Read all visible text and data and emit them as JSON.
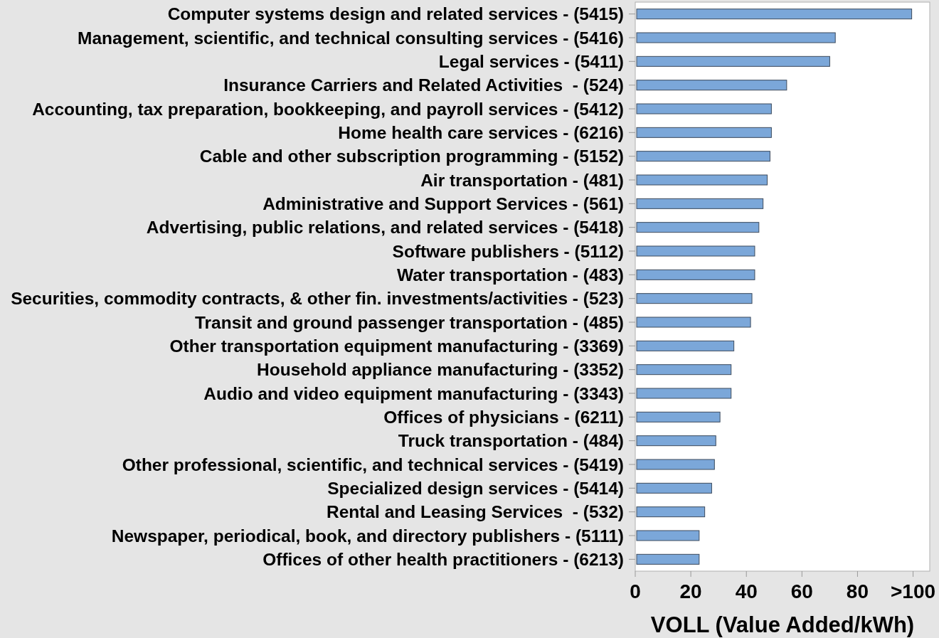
{
  "chart_data": {
    "type": "bar",
    "orientation": "horizontal",
    "xlabel": "VOLL (Value Added/kWh)",
    "categories": [
      "Computer systems design and related services - (5415)",
      "Management, scientific, and technical consulting services - (5416)",
      "Legal services - (5411)",
      "Insurance Carriers and Related Activities  - (524)",
      "Accounting, tax preparation, bookkeeping, and payroll services - (5412)",
      "Home health care services - (6216)",
      "Cable and other subscription programming - (5152)",
      "Air transportation - (481)",
      "Administrative and Support Services - (561)",
      "Advertising, public relations, and related services - (5418)",
      "Software publishers - (5112)",
      "Water transportation - (483)",
      "Securities, commodity contracts, & other fin. investments/activities - (523)",
      "Transit and ground passenger transportation - (485)",
      "Other transportation equipment manufacturing - (3369)",
      "Household appliance manufacturing - (3352)",
      "Audio and video equipment manufacturing - (3343)",
      "Offices of physicians - (6211)",
      "Truck transportation - (484)",
      "Other professional, scientific, and technical services - (5419)",
      "Specialized design services - (5414)",
      "Rental and Leasing Services  - (532)",
      "Newspaper, periodical, book, and directory publishers - (5111)",
      "Offices of other health practitioners - (6213)"
    ],
    "values": [
      99.5,
      72,
      70,
      54.5,
      49,
      49,
      48.5,
      47.5,
      46,
      44.5,
      43,
      43,
      42,
      41.5,
      35.5,
      34.5,
      34.5,
      30.5,
      29,
      28.5,
      27.5,
      25,
      23,
      23
    ],
    "color": "#7ba7d9",
    "xlim": [
      0,
      106
    ],
    "xticks": [
      0,
      20,
      40,
      60,
      80,
      {
        "value": 100,
        "label": ">100"
      }
    ],
    "grid": false
  }
}
